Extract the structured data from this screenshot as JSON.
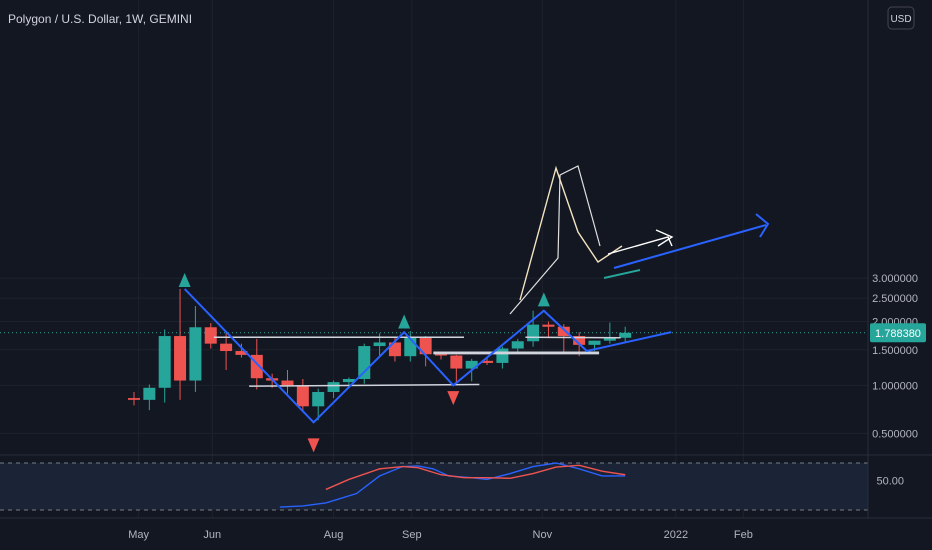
{
  "header": {
    "symbol_title": "Polygon / U.S. Dollar, 1W, GEMINI"
  },
  "currency_button": {
    "label": "USD"
  },
  "price_label": {
    "value": "1.788380",
    "price": 1.78838
  },
  "colors": {
    "background": "#131722",
    "up": "#26a69a",
    "down": "#ef5350",
    "zigzag": "#2962ff",
    "text": "#b2b5be",
    "oscillator_fast": "#2962ff",
    "oscillator_slow": "#ef5350"
  },
  "chart_data": [
    {
      "type": "candlestick",
      "title": "Polygon / U.S. Dollar, 1W, GEMINI",
      "y_axis": {
        "ylim": [
          0.28,
          3.13
        ],
        "ticks": [
          "3.000000",
          "2.500000",
          "2.000000",
          "1.500000",
          "1.000000",
          "0.500000"
        ],
        "tick_values": [
          3.0,
          2.5,
          2.0,
          1.5,
          1.0,
          0.5
        ]
      },
      "x_axis": {
        "ticks": [
          "May",
          "Jun",
          "Aug",
          "Sep",
          "Nov",
          "2022",
          "Feb"
        ],
        "tick_index": [
          0.3,
          5.1,
          13.0,
          18.1,
          26.6,
          35.3,
          39.7
        ]
      },
      "current_price": 1.78838,
      "candles": [
        {
          "o": 0.85,
          "h": 0.92,
          "l": 0.77,
          "c": 0.83
        },
        {
          "o": 0.83,
          "h": 1.01,
          "l": 0.72,
          "c": 0.97
        },
        {
          "o": 0.97,
          "h": 1.85,
          "l": 0.8,
          "c": 1.73
        },
        {
          "o": 1.73,
          "h": 2.72,
          "l": 0.83,
          "c": 1.06
        },
        {
          "o": 1.06,
          "h": 2.32,
          "l": 0.92,
          "c": 1.89
        },
        {
          "o": 1.89,
          "h": 1.97,
          "l": 1.52,
          "c": 1.6
        },
        {
          "o": 1.6,
          "h": 1.78,
          "l": 1.2,
          "c": 1.48
        },
        {
          "o": 1.48,
          "h": 1.6,
          "l": 1.38,
          "c": 1.42
        },
        {
          "o": 1.42,
          "h": 1.68,
          "l": 0.95,
          "c": 1.09
        },
        {
          "o": 1.09,
          "h": 1.15,
          "l": 0.97,
          "c": 1.06
        },
        {
          "o": 1.06,
          "h": 1.2,
          "l": 0.9,
          "c": 1.0
        },
        {
          "o": 1.0,
          "h": 1.08,
          "l": 0.7,
          "c": 0.76
        },
        {
          "o": 0.76,
          "h": 0.96,
          "l": 0.62,
          "c": 0.92
        },
        {
          "o": 0.92,
          "h": 1.06,
          "l": 0.85,
          "c": 1.04
        },
        {
          "o": 1.04,
          "h": 1.1,
          "l": 0.98,
          "c": 1.08
        },
        {
          "o": 1.08,
          "h": 1.6,
          "l": 1.02,
          "c": 1.56
        },
        {
          "o": 1.56,
          "h": 1.78,
          "l": 1.4,
          "c": 1.62
        },
        {
          "o": 1.62,
          "h": 1.7,
          "l": 1.32,
          "c": 1.4
        },
        {
          "o": 1.4,
          "h": 1.82,
          "l": 1.32,
          "c": 1.72
        },
        {
          "o": 1.72,
          "h": 1.73,
          "l": 1.25,
          "c": 1.43
        },
        {
          "o": 1.43,
          "h": 1.44,
          "l": 1.35,
          "c": 1.41
        },
        {
          "o": 1.41,
          "h": 1.42,
          "l": 1.02,
          "c": 1.22
        },
        {
          "o": 1.22,
          "h": 1.36,
          "l": 1.05,
          "c": 1.33
        },
        {
          "o": 1.33,
          "h": 1.38,
          "l": 1.27,
          "c": 1.3
        },
        {
          "o": 1.3,
          "h": 1.55,
          "l": 1.22,
          "c": 1.52
        },
        {
          "o": 1.52,
          "h": 1.68,
          "l": 1.45,
          "c": 1.64
        },
        {
          "o": 1.64,
          "h": 2.22,
          "l": 1.55,
          "c": 1.94
        },
        {
          "o": 1.94,
          "h": 2.0,
          "l": 1.7,
          "c": 1.9
        },
        {
          "o": 1.9,
          "h": 1.95,
          "l": 1.45,
          "c": 1.73
        },
        {
          "o": 1.73,
          "h": 1.8,
          "l": 1.4,
          "c": 1.58
        },
        {
          "o": 1.58,
          "h": 1.65,
          "l": 1.48,
          "c": 1.65
        },
        {
          "o": 1.65,
          "h": 1.98,
          "l": 1.6,
          "c": 1.7
        },
        {
          "o": 1.7,
          "h": 1.9,
          "l": 1.62,
          "c": 1.78838
        }
      ],
      "zigzag_points": [
        [
          3.3,
          2.72
        ],
        [
          11.7,
          0.6
        ],
        [
          17.6,
          1.8
        ],
        [
          20.8,
          1.0
        ],
        [
          26.7,
          2.22
        ],
        [
          29.5,
          1.48
        ],
        [
          35.0,
          1.8
        ]
      ],
      "triangle_up_markers": [
        [
          3.3,
          2.95
        ],
        [
          17.6,
          2.0
        ],
        [
          26.7,
          2.47
        ]
      ],
      "triangle_down_markers": [
        [
          11.7,
          0.4
        ],
        [
          20.8,
          0.85
        ]
      ],
      "horizontal_lines": [
        [
          [
            5.2,
            1.71
          ],
          [
            21.5,
            1.71
          ]
        ],
        [
          [
            7.5,
            0.99
          ],
          [
            22.5,
            1.01
          ]
        ],
        [
          [
            19.5,
            1.46
          ],
          [
            30.3,
            1.46
          ]
        ],
        [
          [
            19.5,
            1.44
          ],
          [
            30.3,
            1.44
          ]
        ],
        [
          [
            25.5,
            1.71
          ],
          [
            31.7,
            1.7
          ]
        ]
      ]
    },
    {
      "type": "line",
      "ylim": [
        0,
        100
      ],
      "ticks": [
        "50.00"
      ],
      "tick_values": [
        50
      ],
      "upper_band": 80,
      "lower_band": 20,
      "series": [
        {
          "x": [
            9.5,
            11.0,
            12.5,
            14.5,
            16.0,
            17.5,
            18.5,
            19.5,
            20.5,
            22.0,
            23.0,
            24.5,
            26.0,
            27.5,
            29.0,
            30.5,
            32.0
          ],
          "values": [
            5,
            7,
            12,
            28,
            58,
            74,
            75,
            70,
            58,
            55,
            52,
            62,
            74,
            80,
            70,
            58,
            58
          ]
        },
        {
          "x": [
            12.5,
            14.0,
            16.0,
            17.5,
            18.5,
            20.0,
            21.5,
            23.0,
            24.5,
            26.0,
            27.5,
            29.0,
            30.5,
            32.0
          ],
          "values": [
            35,
            52,
            70,
            74,
            72,
            60,
            55,
            55,
            54,
            62,
            73,
            76,
            66,
            60
          ]
        }
      ]
    }
  ]
}
